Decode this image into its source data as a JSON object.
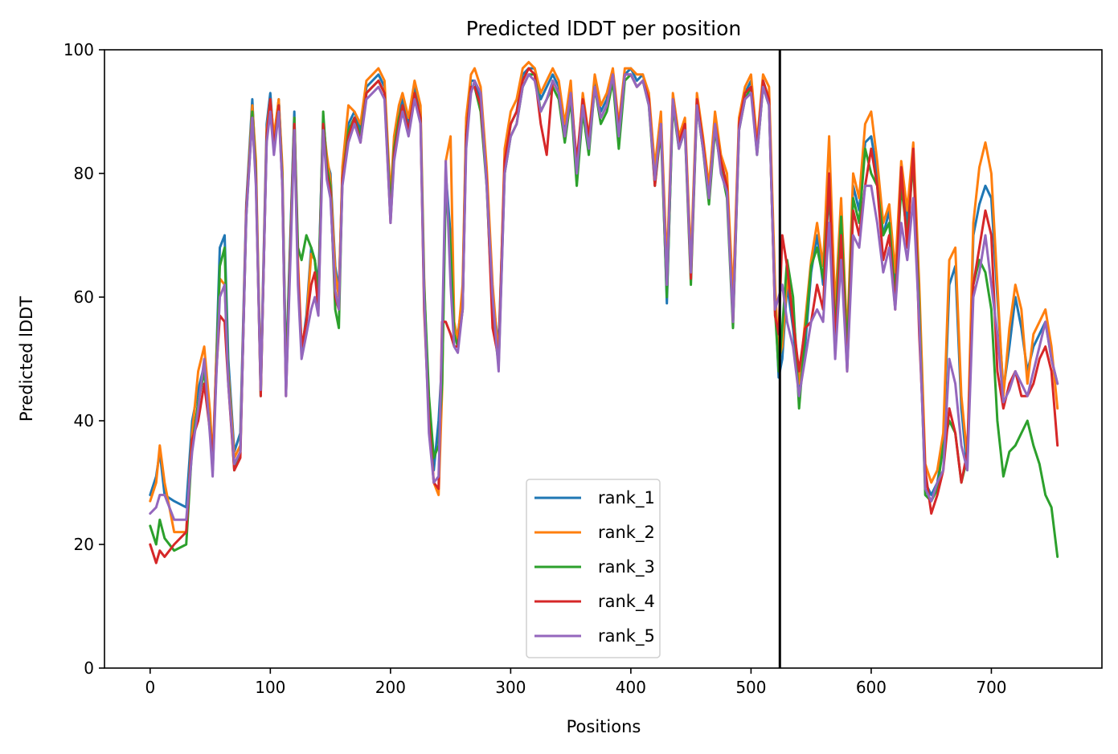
{
  "chart_data": {
    "type": "line",
    "title": "Predicted lDDT per position",
    "xlabel": "Positions",
    "ylabel": "Predicted lDDT",
    "xlim": [
      -38,
      792
    ],
    "ylim": [
      0,
      100
    ],
    "xticks": [
      0,
      100,
      200,
      300,
      400,
      500,
      600,
      700
    ],
    "yticks": [
      0,
      20,
      40,
      60,
      80,
      100
    ],
    "grid": false,
    "legend_position": "lower-center",
    "vline": {
      "x": 524,
      "color": "#000000"
    },
    "x": [
      0,
      5,
      8,
      12,
      20,
      30,
      35,
      40,
      45,
      50,
      52,
      55,
      58,
      62,
      65,
      70,
      75,
      80,
      85,
      88,
      92,
      97,
      100,
      103,
      107,
      110,
      113,
      117,
      120,
      123,
      126,
      130,
      134,
      137,
      140,
      144,
      147,
      150,
      154,
      157,
      160,
      165,
      170,
      175,
      180,
      185,
      190,
      195,
      200,
      203,
      207,
      210,
      215,
      220,
      225,
      228,
      232,
      236,
      240,
      243,
      246,
      250,
      253,
      256,
      260,
      263,
      267,
      270,
      275,
      280,
      285,
      290,
      295,
      300,
      305,
      310,
      315,
      320,
      325,
      330,
      335,
      340,
      345,
      350,
      355,
      360,
      365,
      370,
      375,
      380,
      385,
      390,
      395,
      400,
      405,
      410,
      415,
      420,
      425,
      430,
      435,
      440,
      445,
      450,
      455,
      460,
      465,
      470,
      475,
      480,
      485,
      490,
      495,
      500,
      505,
      510,
      515,
      520,
      523,
      526,
      530,
      535,
      540,
      545,
      550,
      555,
      560,
      565,
      570,
      575,
      580,
      585,
      590,
      595,
      600,
      605,
      610,
      615,
      620,
      625,
      630,
      635,
      640,
      645,
      650,
      655,
      660,
      665,
      670,
      675,
      680,
      685,
      690,
      695,
      700,
      705,
      710,
      715,
      720,
      725,
      730,
      735,
      740,
      745,
      750,
      755
    ],
    "series": [
      {
        "name": "rank_1",
        "color": "#1f77b4",
        "values": [
          28,
          31,
          35,
          28,
          27,
          26,
          40,
          45,
          49,
          40,
          32,
          50,
          68,
          70,
          50,
          35,
          38,
          75,
          92,
          80,
          46,
          88,
          93,
          85,
          92,
          80,
          48,
          72,
          90,
          64,
          51,
          57,
          68,
          66,
          62,
          89,
          82,
          80,
          65,
          61,
          80,
          88,
          90,
          87,
          94,
          95,
          96,
          94,
          75,
          85,
          90,
          92,
          88,
          94,
          90,
          60,
          42,
          32,
          40,
          50,
          80,
          70,
          55,
          54,
          60,
          88,
          95,
          95,
          92,
          80,
          60,
          52,
          82,
          88,
          90,
          96,
          97,
          97,
          92,
          94,
          96,
          94,
          87,
          94,
          80,
          92,
          85,
          95,
          90,
          92,
          96,
          86,
          96,
          97,
          95,
          96,
          92,
          80,
          89,
          59,
          92,
          85,
          88,
          64,
          92,
          85,
          76,
          88,
          82,
          78,
          58,
          88,
          93,
          95,
          84,
          95,
          92,
          60,
          47,
          50,
          62,
          55,
          45,
          52,
          64,
          70,
          62,
          77,
          55,
          75,
          52,
          78,
          74,
          85,
          86,
          80,
          70,
          74,
          62,
          80,
          72,
          84,
          60,
          30,
          28,
          30,
          36,
          62,
          65,
          42,
          32,
          70,
          75,
          78,
          76,
          60,
          45,
          52,
          60,
          55,
          48,
          52,
          54,
          56,
          50,
          46
        ]
      },
      {
        "name": "rank_2",
        "color": "#ff7f0e",
        "values": [
          27,
          30,
          36,
          30,
          22,
          22,
          38,
          48,
          52,
          41,
          33,
          50,
          63,
          62,
          48,
          34,
          36,
          74,
          91,
          82,
          45,
          87,
          92,
          86,
          92,
          81,
          46,
          70,
          89,
          66,
          52,
          56,
          67,
          66,
          60,
          88,
          83,
          79,
          64,
          60,
          81,
          91,
          90,
          88,
          95,
          96,
          97,
          95,
          76,
          86,
          91,
          93,
          89,
          95,
          91,
          63,
          40,
          30,
          28,
          45,
          82,
          86,
          56,
          53,
          62,
          89,
          96,
          97,
          94,
          81,
          62,
          50,
          84,
          90,
          92,
          97,
          98,
          97,
          93,
          95,
          97,
          95,
          88,
          95,
          80,
          93,
          86,
          96,
          91,
          93,
          97,
          88,
          97,
          97,
          96,
          96,
          93,
          81,
          90,
          65,
          93,
          86,
          89,
          66,
          93,
          86,
          78,
          90,
          83,
          80,
          60,
          89,
          94,
          96,
          85,
          96,
          94,
          62,
          50,
          52,
          63,
          58,
          46,
          56,
          66,
          72,
          65,
          86,
          58,
          76,
          53,
          80,
          76,
          88,
          90,
          82,
          72,
          75,
          64,
          82,
          74,
          85,
          62,
          33,
          30,
          32,
          38,
          66,
          68,
          44,
          34,
          72,
          81,
          85,
          80,
          62,
          44,
          55,
          62,
          58,
          46,
          54,
          56,
          58,
          52,
          42
        ]
      },
      {
        "name": "rank_3",
        "color": "#2ca02c",
        "values": [
          23,
          20,
          24,
          21,
          19,
          20,
          36,
          43,
          48,
          38,
          32,
          48,
          65,
          68,
          47,
          32,
          35,
          73,
          90,
          80,
          44,
          86,
          91,
          84,
          91,
          79,
          47,
          71,
          89,
          68,
          66,
          70,
          68,
          66,
          60,
          90,
          81,
          78,
          58,
          55,
          79,
          87,
          89,
          86,
          93,
          94,
          95,
          93,
          74,
          84,
          89,
          91,
          87,
          93,
          89,
          62,
          44,
          34,
          36,
          46,
          78,
          68,
          54,
          52,
          58,
          86,
          94,
          94,
          90,
          78,
          57,
          49,
          80,
          86,
          88,
          94,
          96,
          96,
          90,
          92,
          94,
          92,
          85,
          92,
          78,
          90,
          83,
          94,
          88,
          90,
          95,
          84,
          95,
          96,
          94,
          95,
          91,
          78,
          87,
          60,
          91,
          84,
          87,
          62,
          91,
          84,
          75,
          87,
          81,
          76,
          55,
          87,
          92,
          94,
          83,
          94,
          91,
          58,
          48,
          55,
          66,
          60,
          42,
          54,
          65,
          68,
          63,
          78,
          54,
          73,
          51,
          76,
          72,
          84,
          80,
          78,
          70,
          72,
          60,
          78,
          70,
          82,
          58,
          28,
          27,
          29,
          36,
          40,
          38,
          30,
          34,
          62,
          66,
          64,
          58,
          40,
          31,
          35,
          36,
          38,
          40,
          36,
          33,
          28,
          26,
          18
        ]
      },
      {
        "name": "rank_4",
        "color": "#d62728",
        "values": [
          20,
          17,
          19,
          18,
          20,
          22,
          37,
          40,
          46,
          38,
          33,
          48,
          57,
          56,
          46,
          32,
          34,
          74,
          89,
          79,
          44,
          86,
          92,
          84,
          91,
          78,
          44,
          70,
          88,
          64,
          52,
          56,
          62,
          64,
          58,
          88,
          80,
          77,
          60,
          58,
          79,
          86,
          89,
          85,
          93,
          94,
          95,
          93,
          72,
          83,
          88,
          91,
          87,
          93,
          89,
          58,
          40,
          30,
          29,
          56,
          56,
          54,
          52,
          52,
          58,
          86,
          94,
          94,
          91,
          79,
          55,
          50,
          82,
          88,
          90,
          95,
          97,
          96,
          88,
          83,
          95,
          93,
          86,
          93,
          82,
          92,
          86,
          94,
          89,
          91,
          96,
          87,
          96,
          96,
          94,
          95,
          92,
          78,
          88,
          62,
          92,
          85,
          88,
          63,
          92,
          85,
          76,
          88,
          82,
          78,
          56,
          88,
          93,
          94,
          84,
          95,
          92,
          57,
          54,
          70,
          65,
          56,
          48,
          55,
          56,
          62,
          58,
          80,
          52,
          70,
          48,
          74,
          70,
          78,
          84,
          78,
          66,
          70,
          58,
          81,
          68,
          84,
          54,
          32,
          25,
          28,
          32,
          42,
          38,
          30,
          35,
          62,
          68,
          74,
          70,
          48,
          42,
          46,
          48,
          44,
          44,
          46,
          50,
          52,
          48,
          36
        ]
      },
      {
        "name": "rank_5",
        "color": "#9467bd",
        "values": [
          25,
          26,
          28,
          28,
          24,
          24,
          35,
          42,
          50,
          37,
          31,
          47,
          60,
          62,
          46,
          33,
          35,
          73,
          89,
          78,
          45,
          85,
          90,
          83,
          90,
          78,
          44,
          68,
          87,
          62,
          50,
          54,
          58,
          60,
          57,
          87,
          79,
          76,
          61,
          58,
          78,
          85,
          88,
          85,
          92,
          93,
          94,
          92,
          72,
          82,
          87,
          90,
          86,
          92,
          88,
          60,
          38,
          30,
          31,
          54,
          82,
          62,
          52,
          51,
          58,
          84,
          93,
          95,
          93,
          78,
          60,
          48,
          80,
          86,
          88,
          94,
          96,
          95,
          90,
          92,
          95,
          93,
          86,
          93,
          80,
          91,
          84,
          94,
          89,
          91,
          96,
          86,
          96,
          96,
          94,
          95,
          91,
          79,
          88,
          62,
          92,
          84,
          87,
          64,
          91,
          84,
          76,
          88,
          80,
          77,
          56,
          87,
          92,
          93,
          83,
          94,
          91,
          58,
          60,
          62,
          56,
          52,
          44,
          50,
          56,
          58,
          56,
          72,
          50,
          66,
          48,
          70,
          68,
          78,
          78,
          72,
          64,
          68,
          58,
          72,
          66,
          76,
          56,
          29,
          27,
          30,
          32,
          50,
          46,
          36,
          32,
          60,
          64,
          70,
          62,
          54,
          43,
          45,
          48,
          46,
          44,
          48,
          52,
          56,
          50,
          46
        ]
      }
    ]
  }
}
